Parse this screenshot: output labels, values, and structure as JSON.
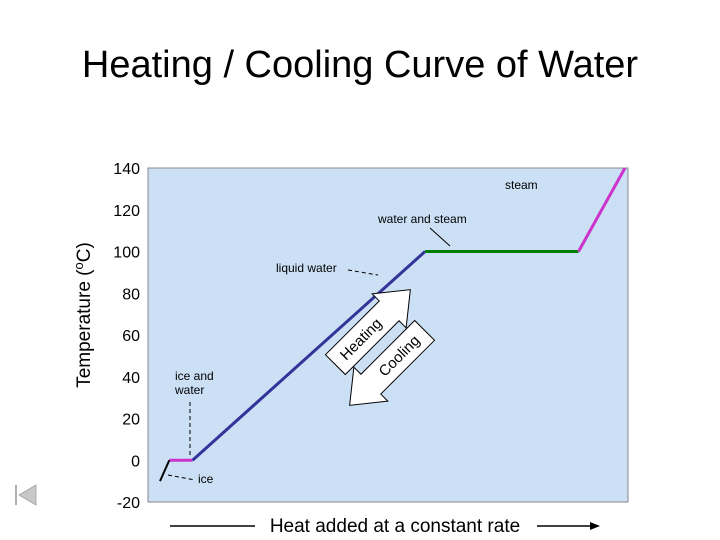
{
  "slide_title": "Heating / Cooling Curve of Water",
  "chart_data": {
    "type": "line",
    "title": "Heating / Cooling Curve of Water",
    "ylabel": "Temperature (oC)",
    "xlabel": "Heat added at a constant rate",
    "ylim": [
      -20,
      140
    ],
    "yticks": [
      "140",
      "120",
      "100",
      "80",
      "60",
      "40",
      "20",
      "0",
      "-20"
    ],
    "ytick_values": [
      140,
      120,
      100,
      80,
      60,
      40,
      20,
      0,
      -20
    ],
    "grid": false,
    "series": [
      {
        "segment": "ice",
        "color": "#000000",
        "points": [
          [
            0,
            -10
          ],
          [
            2,
            0
          ]
        ]
      },
      {
        "segment": "ice and water",
        "color": "#cc33cc",
        "points": [
          [
            2,
            0
          ],
          [
            7,
            0
          ]
        ]
      },
      {
        "segment": "liquid water",
        "color": "#333399",
        "points": [
          [
            7,
            0
          ],
          [
            57,
            100
          ]
        ]
      },
      {
        "segment": "water and steam",
        "color": "#008000",
        "points": [
          [
            57,
            100
          ],
          [
            90,
            100
          ]
        ]
      },
      {
        "segment": "steam",
        "color": "#cc33cc",
        "points": [
          [
            90,
            100
          ],
          [
            100,
            140
          ]
        ]
      }
    ],
    "annotations": [
      {
        "text": "steam"
      },
      {
        "text": "water and steam"
      },
      {
        "text": "liquid water"
      },
      {
        "text": "ice and water",
        "lines": [
          "ice and",
          "water"
        ]
      },
      {
        "text": "ice"
      }
    ],
    "arrows": [
      {
        "label": "Heating",
        "direction": "up"
      },
      {
        "label": "Cooling",
        "direction": "down"
      }
    ]
  },
  "colors": {
    "plot_background": "#cce0f5",
    "axis_frame": "#888888"
  },
  "icons": {
    "nav": "skip-back-icon"
  }
}
